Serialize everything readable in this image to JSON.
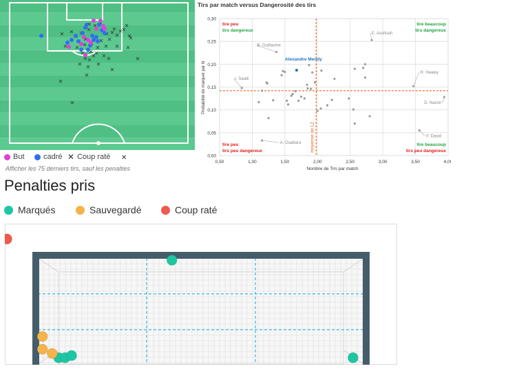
{
  "colors": {
    "pitch_stripe_a": "#4fbf84",
    "pitch_stripe_b": "#5cc98f",
    "goal_shot": "#e040dd",
    "on_target": "#2f6ff0",
    "missed": "#333333",
    "scored": "#1fc6a2",
    "saved": "#f6b24b",
    "pen_missed": "#ee5a4c",
    "avg_line": "#e8631c",
    "quadrant_green": "#1ea53e",
    "quadrant_red": "#e01b1b",
    "highlight_label": "#1e73c0",
    "post": "#455d6b"
  },
  "shot_map": {
    "legend": {
      "goal": "But",
      "on_target": "cadré",
      "missed": "Coup raté"
    },
    "legend_extra_icon": "close-icon",
    "note": "Afficher les 75 derniers tirs, sauf les penalties"
  },
  "chart_data": [
    {
      "type": "scatter",
      "title": "Tirs par match versus Dangerosité des tirs",
      "xlabel": "Nombre de Tirs par match",
      "ylabel": "Probabilité de marquer par tir",
      "xlim": [
        0.5,
        4.0
      ],
      "ylim": [
        0.0,
        0.3
      ],
      "x_ticks": [
        "0,50",
        "1,00",
        "1,50",
        "2,00",
        "2,50",
        "3,00",
        "3,50",
        "4,00"
      ],
      "y_ticks": [
        "0,00",
        "0,05",
        "0,10",
        "0,15",
        "0,20",
        "0,25",
        "0,30"
      ],
      "grid": true,
      "average_x": 1.98,
      "average_y": 0.142,
      "average_label": "moyenne de L2",
      "quadrants": {
        "top_left": [
          "tire peu",
          "tirs dangereux"
        ],
        "top_right": [
          "tire beaucoup",
          "tirs dangereux"
        ],
        "bottom_left": [
          "tire peu",
          "tirs peu dangereux"
        ],
        "bottom_right": [
          "tire beaucoup",
          "tirs peu dangereux"
        ]
      },
      "highlight": {
        "name": "Alexandre Mendy",
        "x": 1.68,
        "y": 0.187
      },
      "labeled_points": [
        {
          "name": "B. Guillaume",
          "x": 1.37,
          "y": 0.227
        },
        {
          "name": "E. Assifuah",
          "x": 2.83,
          "y": 0.253
        },
        {
          "name": "I. Saadi",
          "x": 0.84,
          "y": 0.148
        },
        {
          "name": "R. Healey",
          "x": 3.47,
          "y": 0.152
        },
        {
          "name": "D. Nazon",
          "x": 3.94,
          "y": 0.128
        },
        {
          "name": "F. David",
          "x": 3.56,
          "y": 0.055
        },
        {
          "name": "A. Ouattara",
          "x": 1.15,
          "y": 0.033
        }
      ],
      "points": [
        [
          1.1,
          0.117
        ],
        [
          1.15,
          0.142
        ],
        [
          1.22,
          0.16
        ],
        [
          1.23,
          0.158
        ],
        [
          1.25,
          0.082
        ],
        [
          1.32,
          0.121
        ],
        [
          1.45,
          0.176
        ],
        [
          1.47,
          0.185
        ],
        [
          1.5,
          0.183
        ],
        [
          1.53,
          0.12
        ],
        [
          1.55,
          0.112
        ],
        [
          1.6,
          0.131
        ],
        [
          1.62,
          0.135
        ],
        [
          1.66,
          0.141
        ],
        [
          1.71,
          0.12
        ],
        [
          1.75,
          0.129
        ],
        [
          1.8,
          0.125
        ],
        [
          1.84,
          0.155
        ],
        [
          1.85,
          0.147
        ],
        [
          1.87,
          0.198
        ],
        [
          1.9,
          0.146
        ],
        [
          1.92,
          0.182
        ],
        [
          1.96,
          0.16
        ],
        [
          2.0,
          0.098
        ],
        [
          2.05,
          0.103
        ],
        [
          2.06,
          0.186
        ],
        [
          2.15,
          0.11
        ],
        [
          2.22,
          0.122
        ],
        [
          2.26,
          0.168
        ],
        [
          2.48,
          0.125
        ],
        [
          2.55,
          0.101
        ],
        [
          2.57,
          0.07
        ],
        [
          2.57,
          0.19
        ],
        [
          2.7,
          0.192
        ],
        [
          2.73,
          0.2
        ],
        [
          2.73,
          0.171
        ],
        [
          2.8,
          0.086
        ]
      ]
    },
    {
      "type": "scatter",
      "title": "Penalties pris",
      "series": [
        {
          "name": "Marqués",
          "points": [
            [
              0.41,
              0.98
            ],
            [
              0.06,
              0.06
            ],
            [
              0.08,
              0.06
            ],
            [
              0.1,
              0.08
            ],
            [
              0.97,
              0.06
            ]
          ]
        },
        {
          "name": "Sauvegardé",
          "points": [
            [
              0.01,
              0.26
            ],
            [
              0.01,
              0.14
            ],
            [
              0.04,
              0.1
            ]
          ]
        },
        {
          "name": "Coup raté",
          "points": [
            [
              -0.1,
              1.18
            ]
          ]
        }
      ]
    }
  ]
}
